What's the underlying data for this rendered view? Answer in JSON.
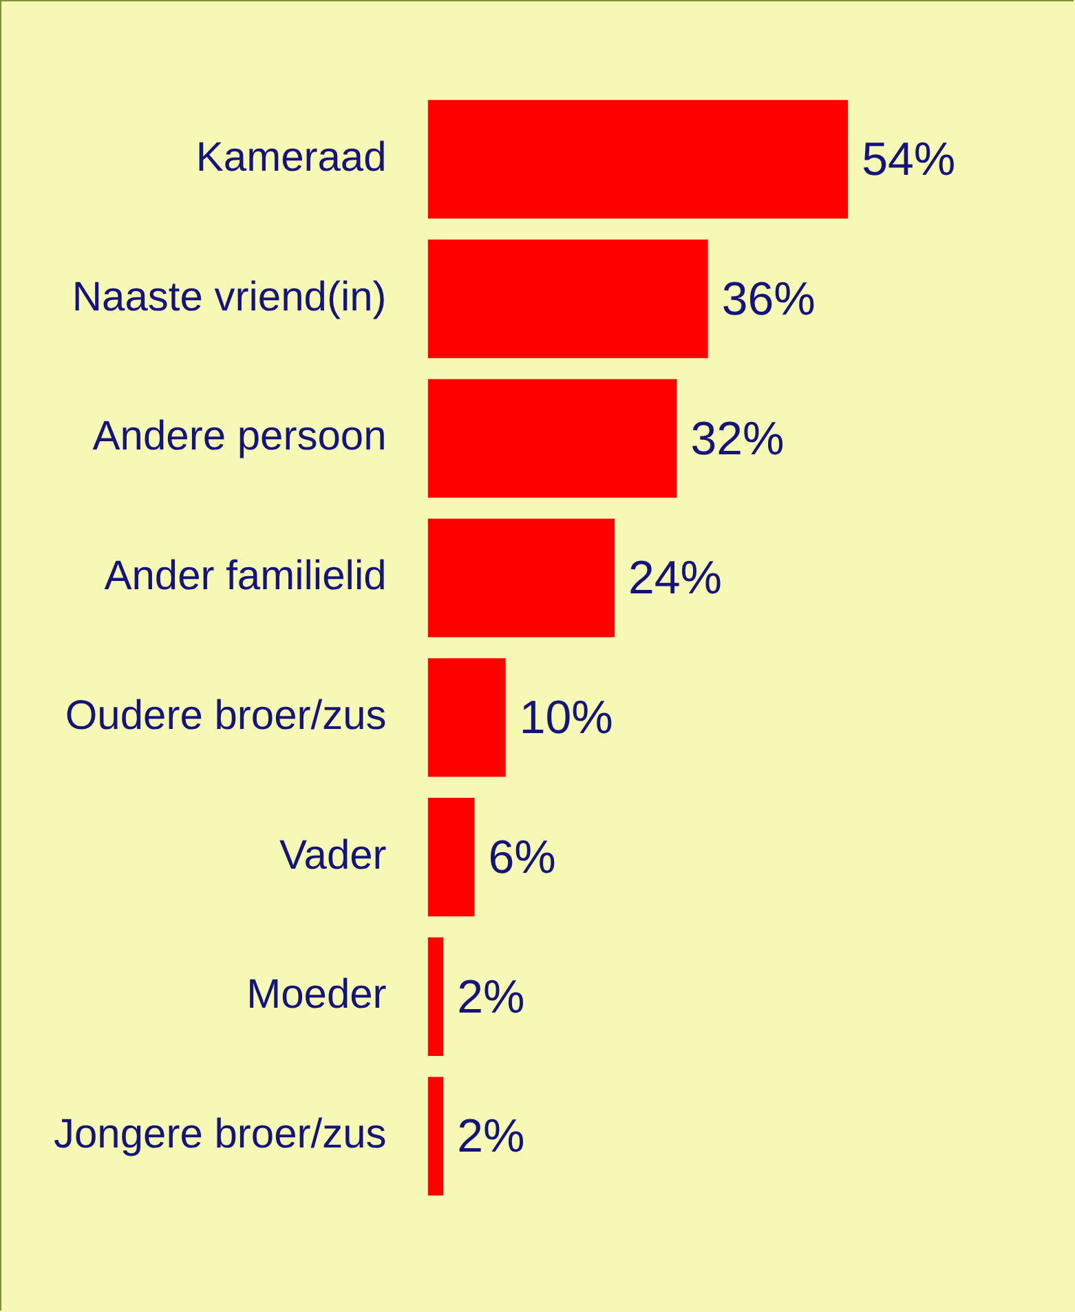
{
  "chart_data": {
    "type": "bar",
    "orientation": "horizontal",
    "categories": [
      "Kameraad",
      "Naaste vriend(in)",
      "Andere persoon",
      "Ander familielid",
      "Oudere broer/zus",
      "Vader",
      "Moeder",
      "Jongere broer/zus"
    ],
    "values": [
      54,
      36,
      32,
      24,
      10,
      6,
      2,
      2
    ],
    "color": "#ff0000",
    "value_labels": [
      "54%",
      "36%",
      "32%",
      "24%",
      "10%",
      "6%",
      "2%",
      "2%"
    ]
  }
}
